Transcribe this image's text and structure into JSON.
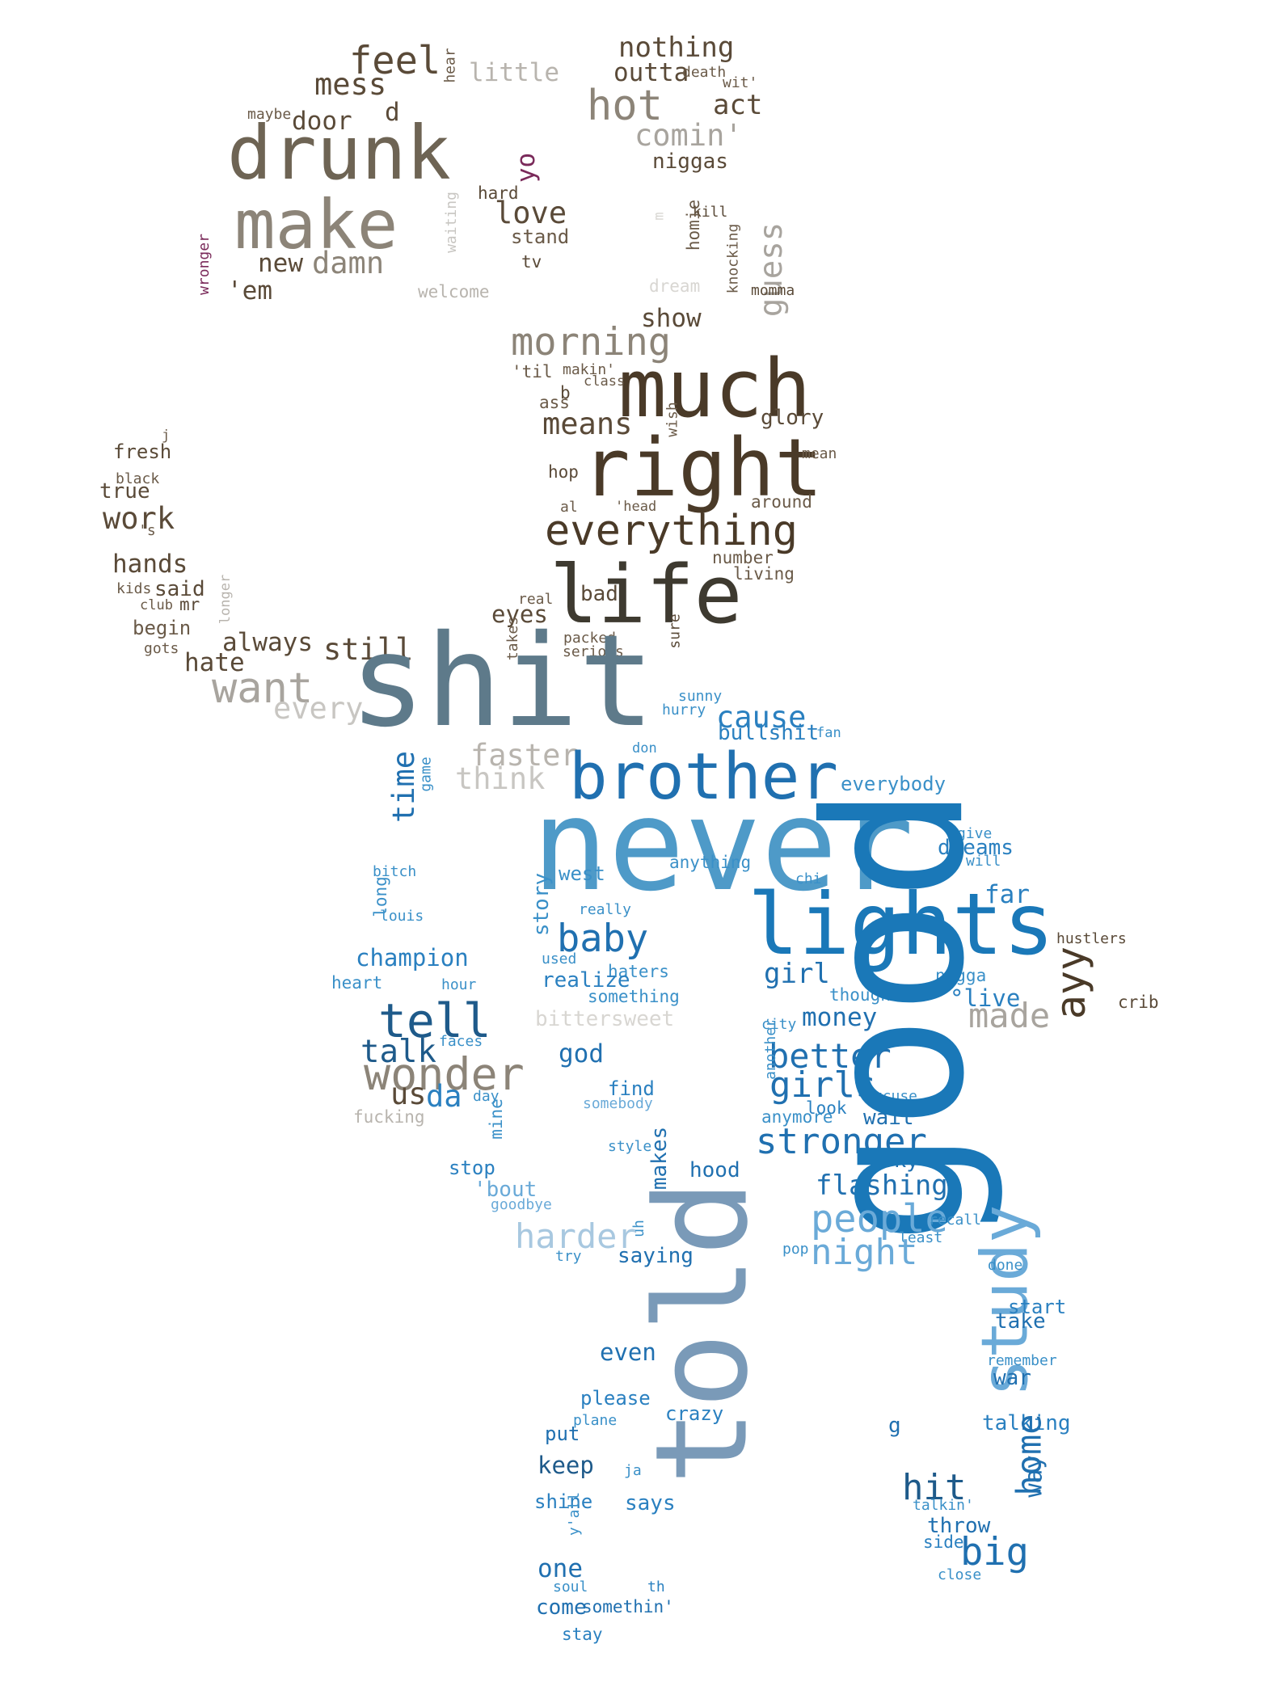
{
  "words": [
    {
      "id": "feel",
      "text": "feel",
      "color": "#5a4a38"
    },
    {
      "id": "nothing",
      "text": "nothing",
      "color": "#5a4a38"
    },
    {
      "id": "mess",
      "text": "mess",
      "color": "#5a4a38"
    },
    {
      "id": "little",
      "text": "little",
      "color": "#b8b4ae"
    },
    {
      "id": "outta",
      "text": "outta",
      "color": "#5a4a38"
    },
    {
      "id": "death",
      "text": "death",
      "color": "#6a5a48"
    },
    {
      "id": "wit",
      "text": "wit'",
      "color": "#6a5a48"
    },
    {
      "id": "hear",
      "text": "hear",
      "color": "#6a5a48"
    },
    {
      "id": "hot",
      "text": "hot",
      "color": "#8c8478"
    },
    {
      "id": "act",
      "text": "act",
      "color": "#5a4a38"
    },
    {
      "id": "maybe",
      "text": "maybe",
      "color": "#6a5a48"
    },
    {
      "id": "door",
      "text": "door",
      "color": "#5a4a38"
    },
    {
      "id": "d",
      "text": "d",
      "color": "#5a4a38"
    },
    {
      "id": "comin",
      "text": "comin'",
      "color": "#a8a49e"
    },
    {
      "id": "drunk",
      "text": "drunk",
      "color": "#6e6454"
    },
    {
      "id": "niggas",
      "text": "niggas",
      "color": "#5a4a38"
    },
    {
      "id": "yo",
      "text": "yo",
      "color": "#7a2a5a"
    },
    {
      "id": "hard",
      "text": "hard",
      "color": "#5a4a38"
    },
    {
      "id": "kill",
      "text": "kill",
      "color": "#5a4a38"
    },
    {
      "id": "make",
      "text": "make",
      "color": "#8c8478"
    },
    {
      "id": "love",
      "text": "love",
      "color": "#5a4a38"
    },
    {
      "id": "m",
      "text": "m",
      "color": "#d8d6d2"
    },
    {
      "id": "homie",
      "text": "homie",
      "color": "#6a5a48"
    },
    {
      "id": "waiting",
      "text": "waiting",
      "color": "#c8c6c2"
    },
    {
      "id": "stand",
      "text": "stand",
      "color": "#6a5a48"
    },
    {
      "id": "new",
      "text": "new",
      "color": "#5a4a38"
    },
    {
      "id": "damn",
      "text": "damn",
      "color": "#8c8478"
    },
    {
      "id": "tv",
      "text": "tv",
      "color": "#5a4a38"
    },
    {
      "id": "guess",
      "text": "guess",
      "color": "#a8a49e"
    },
    {
      "id": "knocking",
      "text": "knocking",
      "color": "#6a5a48"
    },
    {
      "id": "wronger",
      "text": "wronger",
      "color": "#7a2a5a"
    },
    {
      "id": "em",
      "text": "'em",
      "color": "#5a4a38"
    },
    {
      "id": "welcome",
      "text": "welcome",
      "color": "#b8b4ae"
    },
    {
      "id": "dream",
      "text": "dream",
      "color": "#d8d6d2"
    },
    {
      "id": "momma",
      "text": "momma",
      "color": "#5a4a38"
    },
    {
      "id": "show",
      "text": "show",
      "color": "#5a4a38"
    },
    {
      "id": "morning",
      "text": "morning",
      "color": "#8c8478"
    },
    {
      "id": "much",
      "text": "much",
      "color": "#4a3a28"
    },
    {
      "id": "til",
      "text": "'til",
      "color": "#6a5a48"
    },
    {
      "id": "makin",
      "text": "makin'",
      "color": "#6a5a48"
    },
    {
      "id": "class",
      "text": "class",
      "color": "#6a5a48"
    },
    {
      "id": "b",
      "text": "b",
      "color": "#5a4a38"
    },
    {
      "id": "ass",
      "text": "ass",
      "color": "#6a5a48"
    },
    {
      "id": "means",
      "text": "means",
      "color": "#5a4a38"
    },
    {
      "id": "wish",
      "text": "wish",
      "color": "#6a5a48"
    },
    {
      "id": "glory",
      "text": "glory",
      "color": "#5a4a38"
    },
    {
      "id": "j",
      "text": "j",
      "color": "#6a5a48"
    },
    {
      "id": "fresh",
      "text": "fresh",
      "color": "#5a4a38"
    },
    {
      "id": "right",
      "text": "right",
      "color": "#4a3a28"
    },
    {
      "id": "mean",
      "text": "mean",
      "color": "#6a5a48"
    },
    {
      "id": "black",
      "text": "black",
      "color": "#6a5a48"
    },
    {
      "id": "hop",
      "text": "hop",
      "color": "#5a4a38"
    },
    {
      "id": "true",
      "text": "true",
      "color": "#5a4a38"
    },
    {
      "id": "al",
      "text": "al",
      "color": "#6a5a48"
    },
    {
      "id": "head",
      "text": "'head",
      "color": "#6a5a48"
    },
    {
      "id": "around",
      "text": "around",
      "color": "#6a5a48"
    },
    {
      "id": "work",
      "text": "work",
      "color": "#5a4a38"
    },
    {
      "id": "s",
      "text": "'s",
      "color": "#6a5a48"
    },
    {
      "id": "everything",
      "text": "everything",
      "color": "#4a3a28"
    },
    {
      "id": "hands",
      "text": "hands",
      "color": "#5a4a38"
    },
    {
      "id": "number",
      "text": "number",
      "color": "#6a5a48"
    },
    {
      "id": "living",
      "text": "living",
      "color": "#6a5a48"
    },
    {
      "id": "life",
      "text": "life",
      "color": "#3e3a30"
    },
    {
      "id": "kids",
      "text": "kids",
      "color": "#6a5a48"
    },
    {
      "id": "said",
      "text": "said",
      "color": "#5a4a38"
    },
    {
      "id": "club",
      "text": "club",
      "color": "#6a5a48"
    },
    {
      "id": "mr",
      "text": "mr",
      "color": "#5a4a38"
    },
    {
      "id": "longer",
      "text": "longer",
      "color": "#b8b4ae"
    },
    {
      "id": "bad",
      "text": "bad",
      "color": "#5a4a38"
    },
    {
      "id": "real",
      "text": "real",
      "color": "#6a5a48"
    },
    {
      "id": "eyes",
      "text": "eyes",
      "color": "#5a4a38"
    },
    {
      "id": "begin",
      "text": "begin",
      "color": "#6a5a48"
    },
    {
      "id": "always",
      "text": "always",
      "color": "#5a4a38"
    },
    {
      "id": "gots",
      "text": "gots",
      "color": "#6a5a48"
    },
    {
      "id": "hate",
      "text": "hate",
      "color": "#5a4a38"
    },
    {
      "id": "still",
      "text": "still",
      "color": "#5a4a38"
    },
    {
      "id": "takes",
      "text": "takes",
      "color": "#6a5a48"
    },
    {
      "id": "packed",
      "text": "packed",
      "color": "#6a5a48"
    },
    {
      "id": "serious",
      "text": "serious",
      "color": "#6a5a48"
    },
    {
      "id": "sure",
      "text": "sure",
      "color": "#5a4a38"
    },
    {
      "id": "want",
      "text": "want",
      "color": "#a8a49e"
    },
    {
      "id": "shit",
      "text": "shit",
      "color": "#5e7a8a"
    },
    {
      "id": "every",
      "text": "every",
      "color": "#c8c6c2"
    },
    {
      "id": "sunny",
      "text": "sunny",
      "color": "#3a90c8"
    },
    {
      "id": "hurry",
      "text": "hurry",
      "color": "#3a90c8"
    },
    {
      "id": "cause",
      "text": "cause",
      "color": "#2a80c0"
    },
    {
      "id": "bullshit",
      "text": "bullshit",
      "color": "#2a80c0"
    },
    {
      "id": "fan",
      "text": "fan",
      "color": "#3a90c8"
    },
    {
      "id": "faster",
      "text": "faster",
      "color": "#b8b4ae"
    },
    {
      "id": "don",
      "text": "don",
      "color": "#3a90c8"
    },
    {
      "id": "brother",
      "text": "brother",
      "color": "#2070b0"
    },
    {
      "id": "game",
      "text": "game",
      "color": "#3a90c8"
    },
    {
      "id": "time",
      "text": "time",
      "color": "#2070b0"
    },
    {
      "id": "think",
      "text": "think",
      "color": "#c8c6c2"
    },
    {
      "id": "everybody",
      "text": "everybody",
      "color": "#3a90c8"
    },
    {
      "id": "never",
      "text": "never",
      "color": "#4e9ac8"
    },
    {
      "id": "give",
      "text": "give",
      "color": "#3a90c8"
    },
    {
      "id": "dreams",
      "text": "dreams",
      "color": "#2a80c0"
    },
    {
      "id": "will",
      "text": "will",
      "color": "#3a90c8"
    },
    {
      "id": "anything",
      "text": "anything",
      "color": "#3a90c8"
    },
    {
      "id": "west",
      "text": "west",
      "color": "#3a90c8"
    },
    {
      "id": "chi",
      "text": "chi",
      "color": "#3a90c8"
    },
    {
      "id": "bitch",
      "text": "bitch",
      "color": "#3a90c8"
    },
    {
      "id": "far",
      "text": "far",
      "color": "#2a80c0"
    },
    {
      "id": "long",
      "text": "long",
      "color": "#3a90c8"
    },
    {
      "id": "louis",
      "text": "louis",
      "color": "#3a90c8"
    },
    {
      "id": "story",
      "text": "story",
      "color": "#3a90c8"
    },
    {
      "id": "really",
      "text": "really",
      "color": "#3a90c8"
    },
    {
      "id": "lights",
      "text": "lights",
      "color": "#1a78b8"
    },
    {
      "id": "hustlers",
      "text": "hustlers",
      "color": "#5a4a38"
    },
    {
      "id": "baby",
      "text": "baby",
      "color": "#2070b0"
    },
    {
      "id": "champion",
      "text": "champion",
      "color": "#2a80c0"
    },
    {
      "id": "used",
      "text": "used",
      "color": "#3a90c8"
    },
    {
      "id": "haters",
      "text": "haters",
      "color": "#3a90c8"
    },
    {
      "id": "ayy",
      "text": "ayy",
      "color": "#4a3a28"
    },
    {
      "id": "heart",
      "text": "heart",
      "color": "#3a90c8"
    },
    {
      "id": "hour",
      "text": "hour",
      "color": "#3a90c8"
    },
    {
      "id": "realize",
      "text": "realize",
      "color": "#2a80c0"
    },
    {
      "id": "girl",
      "text": "girl",
      "color": "#2070b0"
    },
    {
      "id": "nigga",
      "text": "nigga",
      "color": "#3a90c8"
    },
    {
      "id": "something",
      "text": "something",
      "color": "#3a90c8"
    },
    {
      "id": "thought",
      "text": "thought",
      "color": "#3a90c8"
    },
    {
      "id": "live",
      "text": "°live",
      "color": "#2a80c0"
    },
    {
      "id": "crib",
      "text": "crib",
      "color": "#5a4a38"
    },
    {
      "id": "tell",
      "text": "tell",
      "color": "#1e5a8a"
    },
    {
      "id": "bittersweet",
      "text": "bittersweet",
      "color": "#d8d6d2"
    },
    {
      "id": "made",
      "text": "made",
      "color": "#a8a49e"
    },
    {
      "id": "money",
      "text": "money",
      "color": "#2070b0"
    },
    {
      "id": "city",
      "text": "city",
      "color": "#3a90c8"
    },
    {
      "id": "faces",
      "text": "faces",
      "color": "#3a90c8"
    },
    {
      "id": "talk",
      "text": "talk",
      "color": "#1e5a8a"
    },
    {
      "id": "god",
      "text": "god",
      "color": "#2070b0"
    },
    {
      "id": "better",
      "text": "better",
      "color": "#2070b0"
    },
    {
      "id": "wonder",
      "text": "wonder",
      "color": "#8c8478"
    },
    {
      "id": "another",
      "text": "another",
      "color": "#3a90c8"
    },
    {
      "id": "girls",
      "text": "girls",
      "color": "#2070b0"
    },
    {
      "id": "us",
      "text": "us",
      "color": "#5a4a38"
    },
    {
      "id": "da",
      "text": "da",
      "color": "#2a80c0"
    },
    {
      "id": "find",
      "text": "find",
      "color": "#2a80c0"
    },
    {
      "id": "excuse",
      "text": "excuse",
      "color": "#3a90c8"
    },
    {
      "id": "day",
      "text": "day",
      "color": "#3a90c8"
    },
    {
      "id": "somebody",
      "text": "somebody",
      "color": "#6aaad8"
    },
    {
      "id": "look",
      "text": "look",
      "color": "#2a80c0"
    },
    {
      "id": "fucking",
      "text": "fucking",
      "color": "#b8b4ae"
    },
    {
      "id": "mine",
      "text": "mine",
      "color": "#3a90c8"
    },
    {
      "id": "anymore",
      "text": "anymore",
      "color": "#3a90c8"
    },
    {
      "id": "wait",
      "text": "wait",
      "color": "#2070b0"
    },
    {
      "id": "stronger",
      "text": "stronger",
      "color": "#2070b0"
    },
    {
      "id": "style",
      "text": "style",
      "color": "#3a90c8"
    },
    {
      "id": "sky",
      "text": "sky",
      "color": "#2070b0"
    },
    {
      "id": "stop",
      "text": "stop",
      "color": "#2a80c0"
    },
    {
      "id": "makes",
      "text": "makes",
      "color": "#2070b0"
    },
    {
      "id": "hood",
      "text": "hood",
      "color": "#2070b0"
    },
    {
      "id": "bout",
      "text": "'bout",
      "color": "#6aaad8"
    },
    {
      "id": "flashing",
      "text": "flashing",
      "color": "#2070b0"
    },
    {
      "id": "goodbye",
      "text": "goodbye",
      "color": "#6aaad8"
    },
    {
      "id": "good",
      "text": "good",
      "color": "#1a78b8"
    },
    {
      "id": "people",
      "text": "people",
      "color": "#6aaad8"
    },
    {
      "id": "recall",
      "text": "recall",
      "color": "#3a90c8"
    },
    {
      "id": "harder",
      "text": "harder",
      "color": "#a8c8e0"
    },
    {
      "id": "uh",
      "text": "uh",
      "color": "#3a90c8"
    },
    {
      "id": "least",
      "text": "least",
      "color": "#3a90c8"
    },
    {
      "id": "night",
      "text": "night",
      "color": "#6aaad8"
    },
    {
      "id": "try",
      "text": "try",
      "color": "#3a90c8"
    },
    {
      "id": "saying",
      "text": "saying",
      "color": "#2070b0"
    },
    {
      "id": "pop",
      "text": "pop",
      "color": "#3a90c8"
    },
    {
      "id": "told",
      "text": "told",
      "color": "#7a9ab8"
    },
    {
      "id": "study",
      "text": "study",
      "color": "#6aaad8"
    },
    {
      "id": "done",
      "text": "done",
      "color": "#3a90c8"
    },
    {
      "id": "start",
      "text": "start",
      "color": "#2a80c0"
    },
    {
      "id": "take",
      "text": "take",
      "color": "#2070b0"
    },
    {
      "id": "even",
      "text": "even",
      "color": "#2070b0"
    },
    {
      "id": "remember",
      "text": "remember",
      "color": "#3a90c8"
    },
    {
      "id": "war",
      "text": "war",
      "color": "#2070b0"
    },
    {
      "id": "please",
      "text": "please",
      "color": "#2a80c0"
    },
    {
      "id": "crazy",
      "text": "crazy",
      "color": "#2a80c0"
    },
    {
      "id": "plane",
      "text": "plane",
      "color": "#3a90c8"
    },
    {
      "id": "talking",
      "text": "talking",
      "color": "#2a80c0"
    },
    {
      "id": "g",
      "text": "g",
      "color": "#2070b0"
    },
    {
      "id": "put",
      "text": "put",
      "color": "#2070b0"
    },
    {
      "id": "home",
      "text": "home",
      "color": "#2070b0"
    },
    {
      "id": "way",
      "text": "way",
      "color": "#2070b0"
    },
    {
      "id": "keep",
      "text": "keep",
      "color": "#1e5a8a"
    },
    {
      "id": "ja",
      "text": "ja",
      "color": "#3a90c8"
    },
    {
      "id": "hit",
      "text": "hit",
      "color": "#1e5a8a"
    },
    {
      "id": "shine",
      "text": "shine",
      "color": "#2a80c0"
    },
    {
      "id": "says",
      "text": "says",
      "color": "#2a80c0"
    },
    {
      "id": "talkin",
      "text": "talkin'",
      "color": "#3a90c8"
    },
    {
      "id": "yall",
      "text": "y'all",
      "color": "#3a90c8"
    },
    {
      "id": "throw",
      "text": "throw",
      "color": "#2070b0"
    },
    {
      "id": "side",
      "text": "side",
      "color": "#2a80c0"
    },
    {
      "id": "big",
      "text": "big",
      "color": "#2070b0"
    },
    {
      "id": "one",
      "text": "one",
      "color": "#2070b0"
    },
    {
      "id": "close",
      "text": "close",
      "color": "#3a90c8"
    },
    {
      "id": "soul",
      "text": "soul",
      "color": "#3a90c8"
    },
    {
      "id": "th",
      "text": "th",
      "color": "#2a80c0"
    },
    {
      "id": "come",
      "text": "come",
      "color": "#2070b0"
    },
    {
      "id": "somethin",
      "text": "somethin'",
      "color": "#2070b0"
    },
    {
      "id": "stay",
      "text": "stay",
      "color": "#2a80c0"
    }
  ]
}
